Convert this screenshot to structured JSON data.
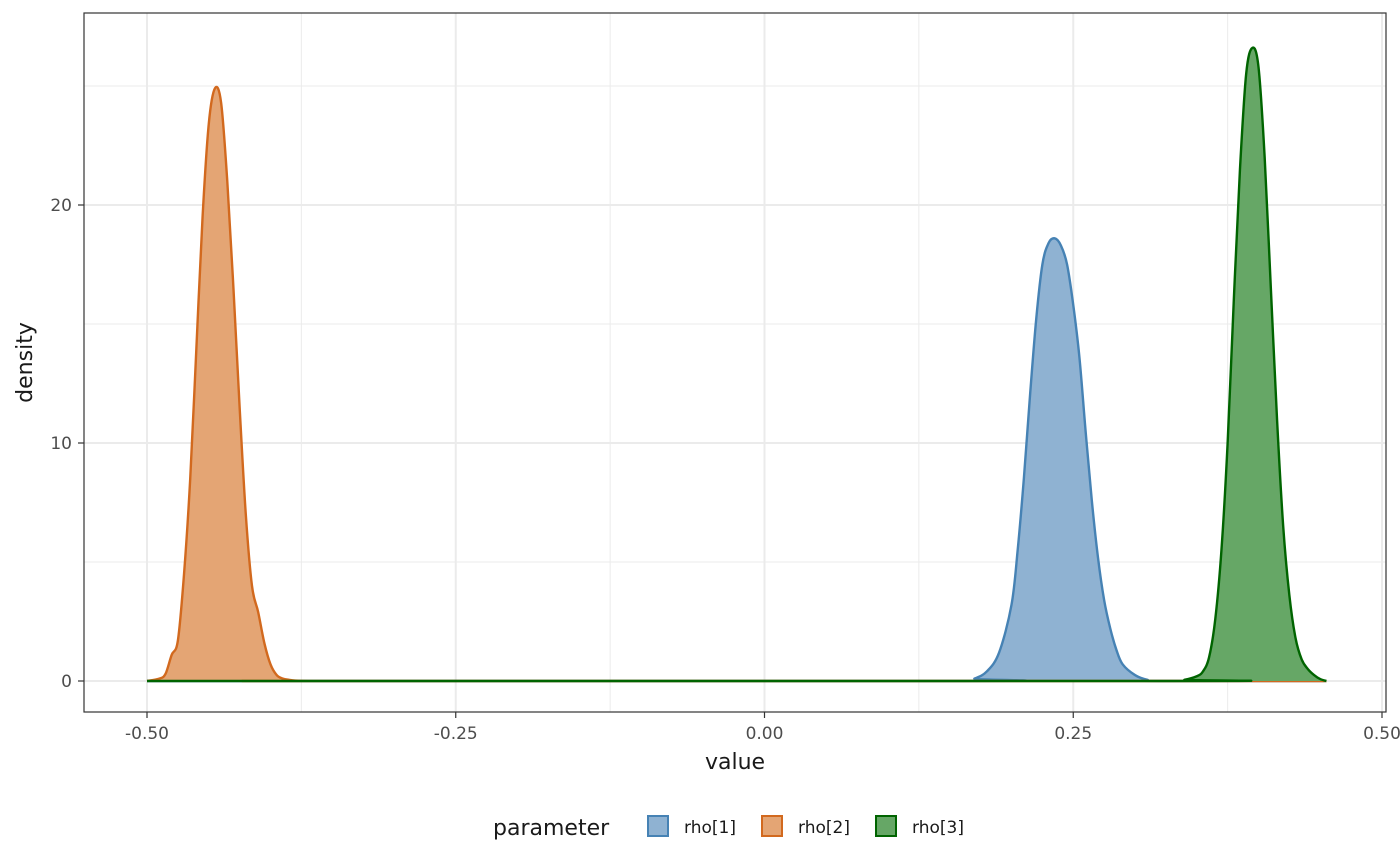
{
  "chart_data": {
    "type": "area",
    "xlabel": "value",
    "ylabel": "density",
    "xlim": [
      -0.5,
      0.5
    ],
    "ylim": [
      0,
      26.5
    ],
    "grid": true,
    "legend_position": "bottom",
    "legend_title": "parameter",
    "x_ticks": [
      {
        "value": -0.5,
        "label": "-0.50"
      },
      {
        "value": -0.25,
        "label": "-0.25"
      },
      {
        "value": 0.0,
        "label": "0.00"
      },
      {
        "value": 0.25,
        "label": "0.25"
      },
      {
        "value": 0.5,
        "label": "0.50"
      }
    ],
    "y_ticks": [
      {
        "value": 0,
        "label": "0"
      },
      {
        "value": 10,
        "label": "10"
      },
      {
        "value": 20,
        "label": "20"
      }
    ],
    "series": [
      {
        "name": "rho[1]",
        "fill": "#8fb2d2",
        "stroke": "#4682b4",
        "x": [
          -0.5,
          0.16,
          0.17,
          0.18,
          0.19,
          0.2,
          0.205,
          0.21,
          0.215,
          0.22,
          0.225,
          0.23,
          0.235,
          0.24,
          0.245,
          0.25,
          0.255,
          0.26,
          0.265,
          0.27,
          0.275,
          0.28,
          0.285,
          0.29,
          0.3,
          0.31,
          0.32,
          0.455
        ],
        "y": [
          0.0,
          0.0,
          0.1,
          0.4,
          1.2,
          3.2,
          5.5,
          8.5,
          12.0,
          15.2,
          17.5,
          18.4,
          18.6,
          18.3,
          17.5,
          15.8,
          13.6,
          10.5,
          7.6,
          5.2,
          3.4,
          2.2,
          1.3,
          0.7,
          0.25,
          0.05,
          0.0,
          0.0
        ]
      },
      {
        "name": "rho[2]",
        "fill": "#e4a574",
        "stroke": "#d2691e",
        "x": [
          -0.5,
          -0.49,
          -0.485,
          -0.48,
          -0.475,
          -0.47,
          -0.465,
          -0.46,
          -0.455,
          -0.45,
          -0.445,
          -0.44,
          -0.435,
          -0.43,
          -0.425,
          -0.42,
          -0.415,
          -0.41,
          -0.405,
          -0.4,
          -0.395,
          -0.39,
          -0.385,
          -0.38,
          -0.37,
          -0.36,
          0.455
        ],
        "y": [
          0.0,
          0.1,
          0.3,
          1.1,
          1.7,
          4.5,
          8.5,
          14.0,
          19.5,
          23.4,
          24.9,
          24.3,
          21.0,
          16.5,
          11.5,
          7.0,
          4.0,
          2.9,
          1.6,
          0.7,
          0.25,
          0.1,
          0.05,
          0.02,
          0.0,
          0.0,
          0.0
        ]
      },
      {
        "name": "rho[3]",
        "fill": "#66a766",
        "stroke": "#006400",
        "x": [
          -0.5,
          0.33,
          0.34,
          0.35,
          0.355,
          0.36,
          0.365,
          0.37,
          0.375,
          0.38,
          0.385,
          0.39,
          0.395,
          0.4,
          0.405,
          0.41,
          0.415,
          0.42,
          0.425,
          0.43,
          0.435,
          0.44,
          0.445,
          0.45,
          0.455
        ],
        "y": [
          0.0,
          0.0,
          0.05,
          0.2,
          0.4,
          1.0,
          2.6,
          5.5,
          10.0,
          16.0,
          21.5,
          25.5,
          26.6,
          25.8,
          22.0,
          16.5,
          11.0,
          6.5,
          3.6,
          1.8,
          0.9,
          0.5,
          0.25,
          0.08,
          0.0
        ]
      }
    ]
  }
}
